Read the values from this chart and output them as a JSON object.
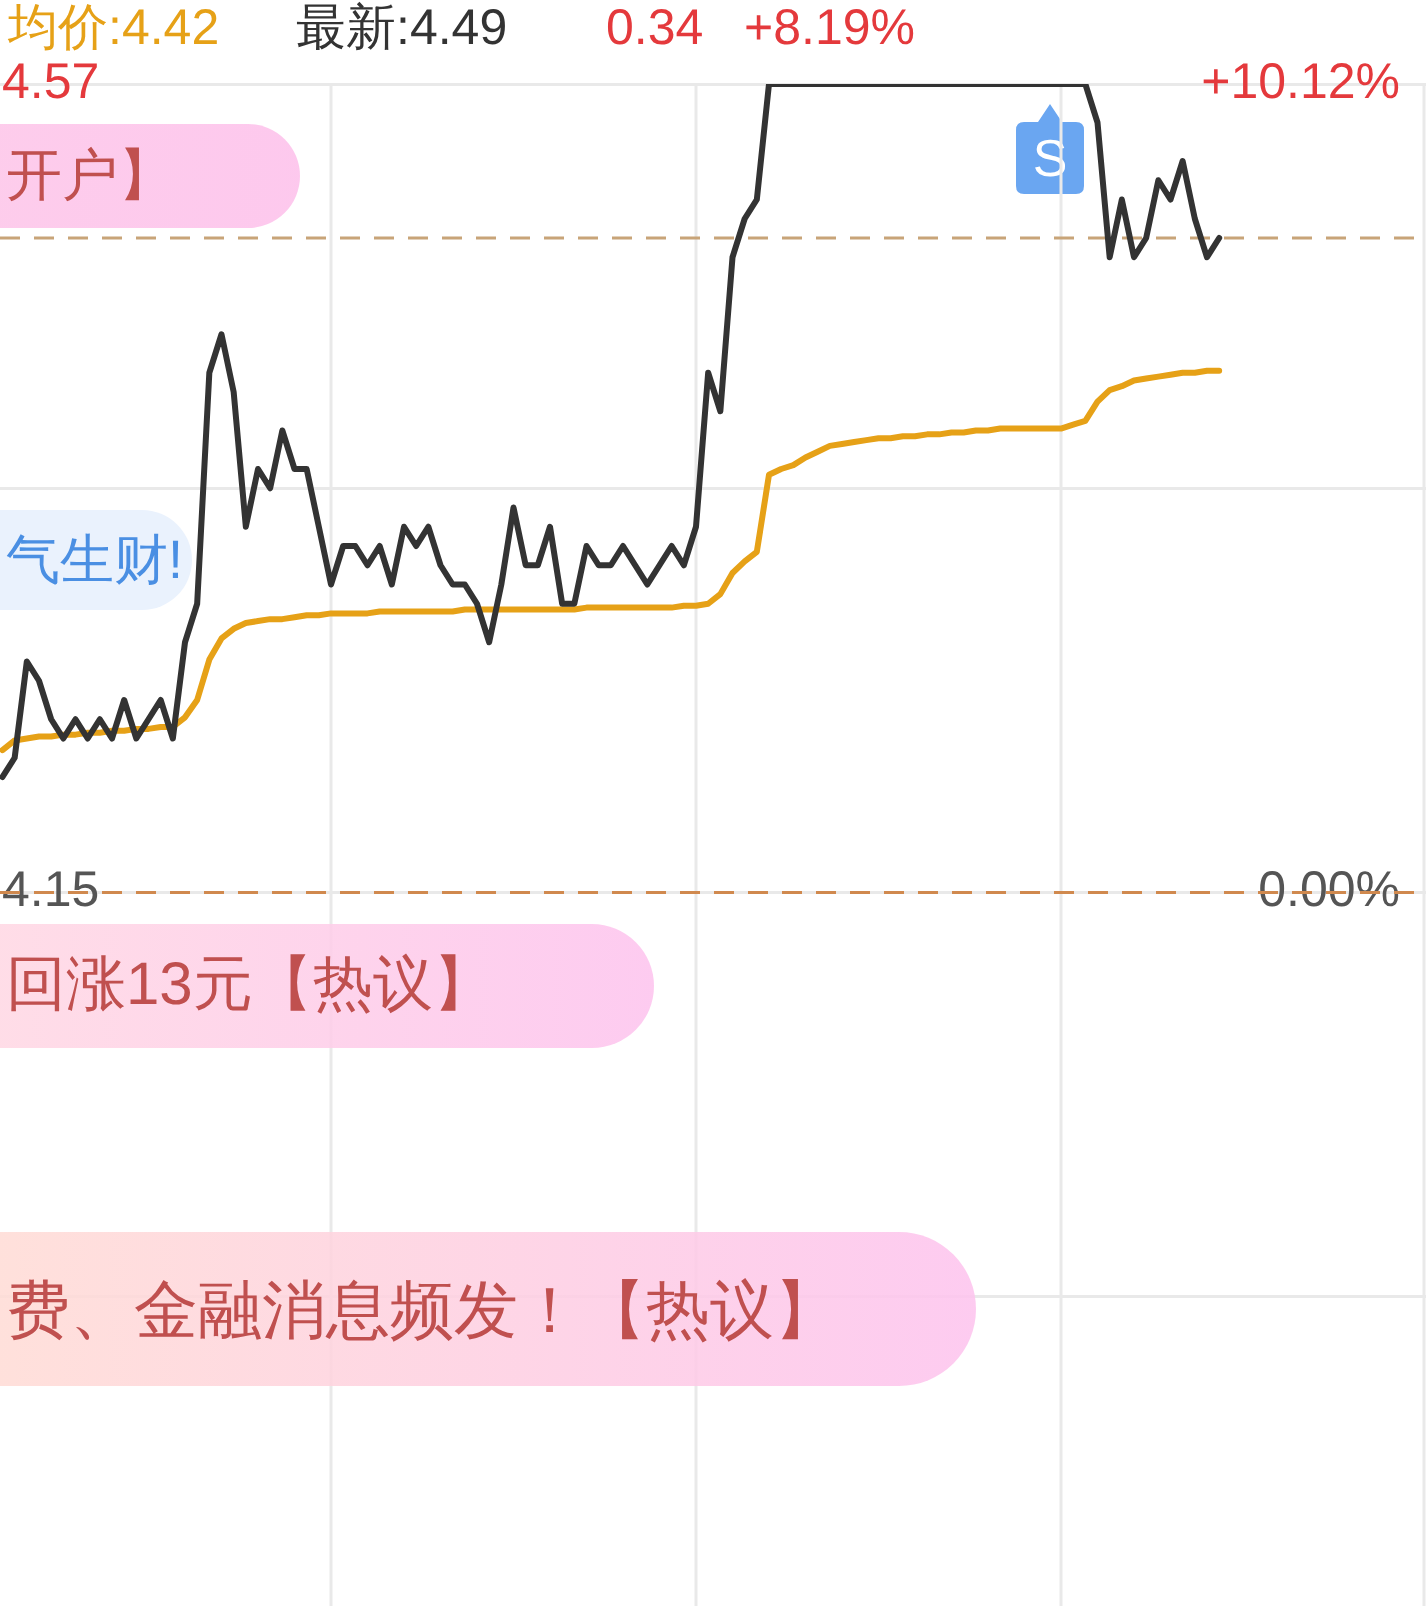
{
  "chart_data": {
    "type": "line",
    "categories": [
      null,
      null,
      null,
      null,
      null,
      null,
      null,
      null,
      null,
      null,
      null,
      null,
      null,
      null,
      null,
      null,
      null,
      null,
      null,
      null,
      null,
      null,
      null,
      null,
      null,
      null,
      null,
      null,
      null,
      null,
      null,
      null,
      null,
      null,
      null,
      null,
      null,
      null,
      null,
      null,
      null,
      null,
      null,
      null,
      null,
      null,
      null,
      null,
      null,
      null,
      null,
      null,
      null,
      null,
      null,
      null,
      null,
      null,
      null,
      null,
      null,
      null,
      null,
      null,
      null,
      null,
      null,
      null,
      null,
      null,
      null,
      null,
      null,
      null,
      null,
      null,
      null,
      null,
      null,
      null,
      null,
      null,
      null,
      null,
      null,
      null,
      null,
      null,
      null,
      null,
      null,
      null,
      null,
      null,
      null,
      null,
      null,
      null,
      null,
      null,
      null,
      null,
      null,
      null,
      null,
      null,
      null,
      null,
      null,
      null,
      null,
      null,
      null,
      null,
      null,
      null,
      null,
      null,
      null,
      null,
      null
    ],
    "series": [
      {
        "color": "#333333",
        "values": [
          null,
          null,
          null,
          4.21,
          4.22,
          4.27,
          4.26,
          4.24,
          4.23,
          4.24,
          4.23,
          4.24,
          4.23,
          4.25,
          4.23,
          4.24,
          4.25,
          4.23,
          4.28,
          4.3,
          4.42,
          4.44,
          4.41,
          4.34,
          4.37,
          4.36,
          4.39,
          4.37,
          4.37,
          4.34,
          4.31,
          4.33,
          4.33,
          4.32,
          4.33,
          4.31,
          4.34,
          4.33,
          4.34,
          4.32,
          4.31,
          4.31,
          4.3,
          4.28,
          4.31,
          4.35,
          4.32,
          4.32,
          4.34,
          4.3,
          4.3,
          4.33,
          4.32,
          4.32,
          4.33,
          4.32,
          4.31,
          4.32,
          4.33,
          4.32,
          4.34,
          4.42,
          4.4,
          4.48,
          4.5,
          4.51,
          4.57,
          4.57,
          4.57,
          4.57,
          4.57,
          4.57,
          4.57,
          4.57,
          4.57,
          4.57,
          4.57,
          4.57,
          4.57,
          4.57,
          4.57,
          4.57,
          4.57,
          4.57,
          4.57,
          4.57,
          4.57,
          4.57,
          4.57,
          4.57,
          4.57,
          4.57,
          4.57,
          4.55,
          4.48,
          4.51,
          4.48,
          4.49,
          4.52,
          4.51,
          4.53,
          4.5,
          4.48,
          4.49,
          null,
          null,
          null,
          null,
          null,
          null,
          null,
          null,
          null,
          null,
          null,
          null,
          null,
          null,
          null,
          null,
          null
        ]
      },
      {
        "color": "#e6a117",
        "values": [
          null,
          null,
          null,
          4.224,
          4.229,
          4.23,
          4.231,
          4.231,
          4.232,
          4.232,
          4.233,
          4.233,
          4.234,
          4.234,
          4.235,
          4.235,
          4.236,
          4.236,
          4.241,
          4.25,
          4.271,
          4.282,
          4.287,
          4.29,
          4.291,
          4.292,
          4.292,
          4.293,
          4.294,
          4.294,
          4.295,
          4.295,
          4.295,
          4.295,
          4.296,
          4.296,
          4.296,
          4.296,
          4.296,
          4.296,
          4.296,
          4.297,
          4.297,
          4.297,
          4.297,
          4.297,
          4.297,
          4.297,
          4.297,
          4.297,
          4.297,
          4.298,
          4.298,
          4.298,
          4.298,
          4.298,
          4.298,
          4.298,
          4.298,
          4.299,
          4.299,
          4.3,
          4.305,
          4.316,
          4.322,
          4.327,
          4.367,
          4.37,
          4.372,
          4.376,
          4.379,
          4.382,
          4.383,
          4.384,
          4.385,
          4.386,
          4.386,
          4.387,
          4.387,
          4.388,
          4.388,
          4.389,
          4.389,
          4.39,
          4.39,
          4.391,
          4.391,
          4.391,
          4.391,
          4.391,
          4.391,
          4.393,
          4.395,
          4.405,
          4.411,
          4.413,
          4.416,
          4.417,
          4.418,
          4.419,
          4.42,
          4.42,
          4.421,
          4.421,
          null,
          null,
          null,
          null,
          null,
          null,
          null,
          null,
          null,
          null,
          null,
          null,
          null,
          null,
          null,
          null,
          null
        ]
      }
    ],
    "ylim": [
      3.77,
      4.57
    ],
    "yticks": [
      4.57,
      {
        "value": 4.36,
        "label": null
      },
      4.15,
      {
        "value": 3.94,
        "label": null
      }
    ],
    "y2lim": [
      -9.16,
      10.12
    ],
    "y2ticks": [
      {
        "value": 10.12,
        "label": "+10.12%"
      },
      {
        "value": 0,
        "label": "0.00%"
      }
    ],
    "ref_lines": [
      {
        "axis": "y",
        "value": 4.49,
        "color": "#c8a478",
        "line_style": "dashed"
      },
      {
        "axis": "y",
        "value": 4.15,
        "color": "#d0894e",
        "line_style": "dashed"
      }
    ],
    "annotations": [
      "均价:4.42",
      "最新:4.49",
      "0.34",
      "+8.19%",
      "开户】",
      "气生财!",
      "回涨13元【热议】",
      "费、金融消息频发！【热议】",
      "S"
    ],
    "grid": true,
    "tick_labels": "y"
  }
}
